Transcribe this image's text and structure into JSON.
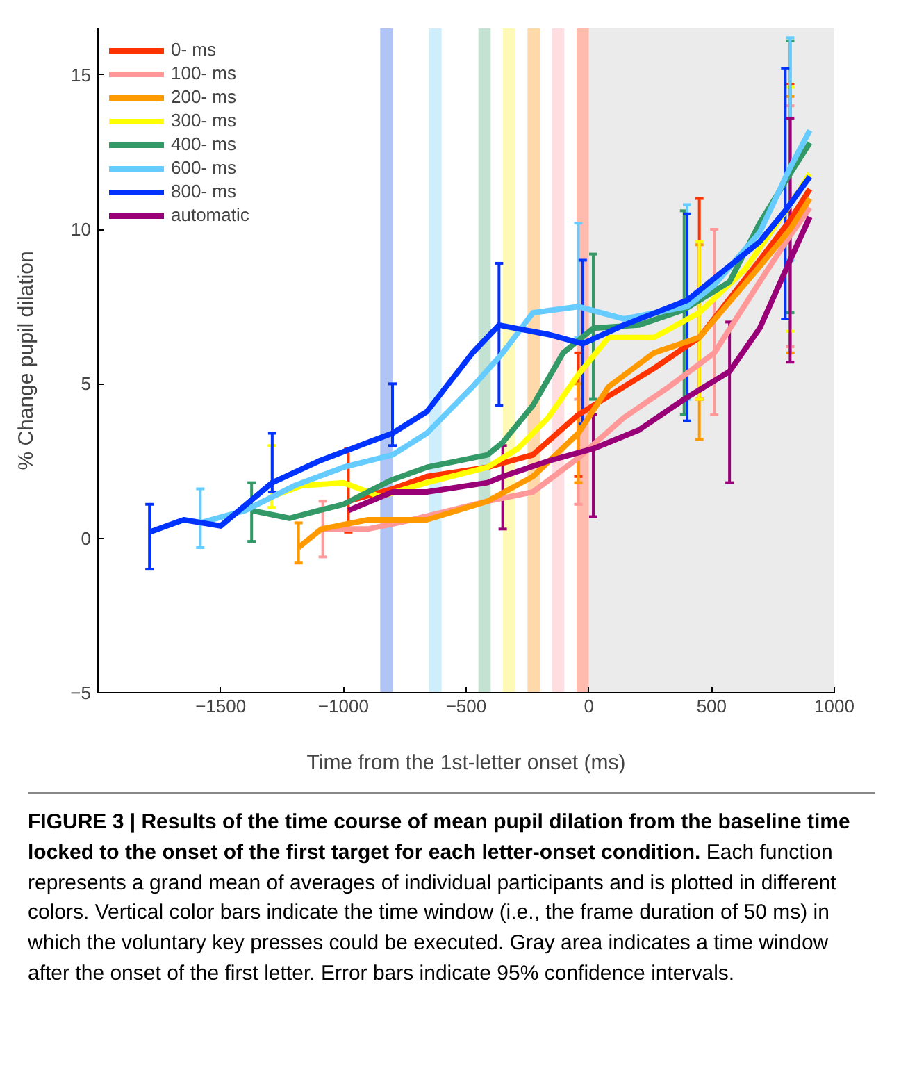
{
  "chart_data": {
    "type": "line",
    "title": "FIGURE 3 | Results of the time course of mean pupil dilation from the baseline time locked to the onset of the first target for each letter-onset condition.",
    "xlabel": "Time from the 1st-letter onset (ms)",
    "ylabel": "% Change pupil dilation",
    "xlim": [
      -2000,
      1000
    ],
    "xticks": [
      -1500,
      -1000,
      -500,
      0,
      500,
      1000
    ],
    "ylim": [
      -5,
      16.5
    ],
    "yticks": [
      -5,
      0,
      5,
      10,
      15
    ],
    "grid": false,
    "legend": "top left",
    "marker": "none",
    "line_style": "solid",
    "annotations": [
      "Each function represents a grand mean of averages of individual participants and is plotted in different colors. Vertical color bars indicate the time window (i.e., the frame duration of 50 ms) in which the voluntary key presses could be executed. Gray area indicates a time window after the onset of the first letter. Error bars indicate 95% confidence intervals."
    ],
    "bands": [
      {
        "axis": "x",
        "from": 0,
        "to": 1000,
        "label": null,
        "color": "#ebebeb"
      },
      {
        "axis": "x",
        "from": -850,
        "to": -800,
        "label": null,
        "color": "#b0c4f5"
      },
      {
        "axis": "x",
        "from": -650,
        "to": -600,
        "label": null,
        "color": "#cfeefc"
      },
      {
        "axis": "x",
        "from": -450,
        "to": -400,
        "label": null,
        "color": "#c4e2d2"
      },
      {
        "axis": "x",
        "from": -350,
        "to": -300,
        "label": null,
        "color": "#fff9b8"
      },
      {
        "axis": "x",
        "from": -250,
        "to": -200,
        "label": null,
        "color": "#ffd9aa"
      },
      {
        "axis": "x",
        "from": -150,
        "to": -100,
        "label": null,
        "color": "#ffdde1"
      },
      {
        "axis": "x",
        "from": -50,
        "to": 0,
        "label": null,
        "color": "#ffbbad"
      }
    ],
    "series": [
      {
        "name": "0- ms",
        "color": "#ff3300",
        "x": [
          -980,
          -800,
          -660,
          -413,
          -228,
          -43,
          80,
          265,
          450,
          696,
          820,
          900
        ],
        "values": [
          1.2,
          1.6,
          2.0,
          2.3,
          2.7,
          4.0,
          4.6,
          5.5,
          6.5,
          9.0,
          10.3,
          11.3
        ],
        "errors": [
          [
            0.2,
            2.9
          ],
          null,
          null,
          null,
          null,
          [
            2.0,
            6.0
          ],
          null,
          null,
          [
            4.5,
            11.0
          ],
          null,
          [
            6.0,
            14.7
          ],
          null
        ]
      },
      {
        "name": "100- ms",
        "color": "#ff9999",
        "x": [
          -1084,
          -900,
          -720,
          -413,
          -228,
          -43,
          142,
          326,
          511,
          696,
          820,
          900
        ],
        "values": [
          0.3,
          0.3,
          0.6,
          1.2,
          1.5,
          2.6,
          3.9,
          4.9,
          6.0,
          8.3,
          9.8,
          10.7
        ],
        "errors": [
          [
            -0.6,
            1.2
          ],
          null,
          null,
          null,
          null,
          [
            1.1,
            4.5
          ],
          null,
          null,
          [
            4.0,
            10.0
          ],
          null,
          [
            6.2,
            14.0
          ],
          null
        ]
      },
      {
        "name": "200- ms",
        "color": "#ff9900",
        "x": [
          -1183,
          -1090,
          -900,
          -660,
          -413,
          -228,
          -43,
          80,
          265,
          450,
          696,
          820,
          900
        ],
        "values": [
          -0.3,
          0.3,
          0.6,
          0.6,
          1.2,
          2.0,
          3.4,
          4.9,
          6.0,
          6.5,
          8.8,
          10.0,
          11.0
        ],
        "errors": [
          [
            -0.8,
            0.5
          ],
          null,
          null,
          null,
          null,
          null,
          [
            1.8,
            5.0
          ],
          null,
          null,
          [
            3.2,
            9.5
          ],
          null,
          [
            6.0,
            14.3
          ],
          null
        ]
      },
      {
        "name": "300- ms",
        "color": "#ffff00",
        "x": [
          -1293,
          -1170,
          -1000,
          -850,
          -660,
          -413,
          -290,
          -166,
          -43,
          80,
          265,
          450,
          635,
          820,
          900
        ],
        "values": [
          1.35,
          1.7,
          1.8,
          1.35,
          1.8,
          2.3,
          2.9,
          3.9,
          5.3,
          6.5,
          6.5,
          7.3,
          8.7,
          10.8,
          11.8
        ],
        "errors": [
          [
            1.0,
            3.0
          ],
          null,
          null,
          null,
          null,
          null,
          null,
          null,
          null,
          null,
          null,
          [
            4.5,
            9.6
          ],
          null,
          [
            6.7,
            14.6
          ],
          null
        ]
      },
      {
        "name": "400- ms",
        "color": "#339966",
        "x": [
          -1374,
          -1220,
          -1100,
          -1000,
          -800,
          -660,
          -413,
          -351,
          -228,
          -105,
          18,
          203,
          388,
          573,
          696,
          820,
          900
        ],
        "values": [
          0.9,
          0.65,
          0.9,
          1.1,
          1.9,
          2.3,
          2.7,
          3.1,
          4.3,
          6.0,
          6.8,
          6.9,
          7.4,
          8.3,
          10.2,
          11.8,
          12.8
        ],
        "errors": [
          [
            -0.1,
            1.8
          ],
          null,
          null,
          null,
          null,
          null,
          null,
          null,
          null,
          null,
          [
            4.5,
            9.2
          ],
          null,
          [
            4.0,
            10.6
          ],
          null,
          null,
          [
            7.3,
            16.1
          ],
          null
        ]
      },
      {
        "name": "600- ms",
        "color": "#66ccff",
        "x": [
          -1583,
          -1400,
          -1200,
          -1000,
          -800,
          -660,
          -474,
          -351,
          -228,
          -43,
          142,
          400,
          511,
          696,
          820,
          900
        ],
        "values": [
          0.5,
          0.9,
          1.7,
          2.3,
          2.7,
          3.4,
          4.9,
          6.0,
          7.3,
          7.5,
          7.1,
          7.5,
          8.2,
          9.9,
          12.0,
          13.2
        ],
        "errors": [
          [
            -0.3,
            1.6
          ],
          null,
          null,
          null,
          null,
          null,
          null,
          null,
          null,
          [
            6.5,
            10.2
          ],
          null,
          [
            4.5,
            10.8
          ],
          null,
          null,
          [
            9.0,
            16.2
          ],
          null
        ]
      },
      {
        "name": "800- ms",
        "color": "#0033ff",
        "x": [
          -1790,
          -1650,
          -1500,
          -1290,
          -1100,
          -900,
          -800,
          -660,
          -474,
          -366,
          -166,
          -25,
          142,
          400,
          696,
          800,
          900
        ],
        "values": [
          0.2,
          0.6,
          0.4,
          1.8,
          2.5,
          3.1,
          3.4,
          4.1,
          6.0,
          6.9,
          6.6,
          6.3,
          6.9,
          7.7,
          9.6,
          10.6,
          11.7
        ],
        "errors": [
          [
            -1.0,
            1.1
          ],
          null,
          null,
          [
            1.5,
            3.4
          ],
          null,
          null,
          [
            3.0,
            5.0
          ],
          null,
          null,
          [
            4.3,
            8.9
          ],
          null,
          [
            3.7,
            9.0
          ],
          null,
          [
            3.8,
            10.5
          ],
          null,
          [
            7.1,
            15.2
          ],
          null
        ]
      },
      {
        "name": "automatic",
        "color": "#990077",
        "x": [
          -980,
          -800,
          -660,
          -413,
          -351,
          -166,
          18,
          203,
          388,
          573,
          696,
          820,
          900
        ],
        "values": [
          0.9,
          1.5,
          1.5,
          1.8,
          2.0,
          2.5,
          2.9,
          3.5,
          4.5,
          5.4,
          6.8,
          9.0,
          10.4
        ],
        "errors": [
          null,
          null,
          null,
          null,
          [
            0.3,
            3.0
          ],
          null,
          [
            0.7,
            4.0
          ],
          null,
          null,
          [
            1.8,
            7.0
          ],
          null,
          [
            5.7,
            13.6
          ],
          null
        ]
      }
    ]
  }
}
